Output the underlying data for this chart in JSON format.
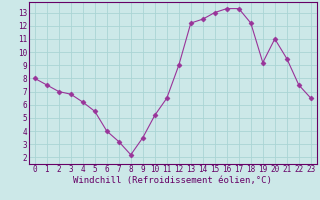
{
  "x": [
    0,
    1,
    2,
    3,
    4,
    5,
    6,
    7,
    8,
    9,
    10,
    11,
    12,
    13,
    14,
    15,
    16,
    17,
    18,
    19,
    20,
    21,
    22,
    23
  ],
  "y": [
    8.0,
    7.5,
    7.0,
    6.8,
    6.2,
    5.5,
    4.0,
    3.2,
    2.2,
    3.5,
    5.2,
    6.5,
    9.0,
    12.2,
    12.5,
    13.0,
    13.3,
    13.3,
    12.2,
    9.2,
    11.0,
    9.5,
    7.5,
    6.5
  ],
  "line_color": "#993399",
  "marker": "D",
  "marker_size": 2.5,
  "bg_color": "#cce8e8",
  "grid_color": "#aad4d4",
  "axis_color": "#660066",
  "xlabel": "Windchill (Refroidissement éolien,°C)",
  "xlim": [
    -0.5,
    23.5
  ],
  "ylim": [
    1.5,
    13.8
  ],
  "yticks": [
    2,
    3,
    4,
    5,
    6,
    7,
    8,
    9,
    10,
    11,
    12,
    13
  ],
  "xticks": [
    0,
    1,
    2,
    3,
    4,
    5,
    6,
    7,
    8,
    9,
    10,
    11,
    12,
    13,
    14,
    15,
    16,
    17,
    18,
    19,
    20,
    21,
    22,
    23
  ],
  "tick_fontsize": 5.5,
  "xlabel_fontsize": 6.5,
  "label_color": "#660066",
  "spine_color": "#660066"
}
